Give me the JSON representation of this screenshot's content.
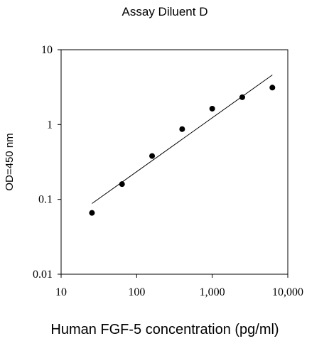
{
  "chart_data": {
    "type": "scatter",
    "title": "Assay Diluent  D",
    "xlabel": "Human FGF-5 concentration (pg/ml)",
    "ylabel": "OD=450 nm",
    "xscale": "log",
    "yscale": "log",
    "xlim": [
      10,
      10000
    ],
    "ylim": [
      0.01,
      10
    ],
    "x_ticks": [
      10,
      100,
      1000,
      10000
    ],
    "x_tick_labels": [
      "10",
      "100",
      "1,000",
      "10,000"
    ],
    "y_ticks": [
      0.01,
      0.1,
      1,
      10
    ],
    "y_tick_labels": [
      "0.01",
      "0.1",
      "1",
      "10"
    ],
    "grid": false,
    "series": [
      {
        "x": [
          25.6,
          64,
          160,
          400,
          1000,
          2500,
          6250
        ],
        "y": [
          0.066,
          0.16,
          0.38,
          0.87,
          1.63,
          2.32,
          3.12
        ]
      }
    ],
    "fit_line": {
      "x": [
        25.6,
        6250
      ],
      "y": [
        0.088,
        4.6
      ]
    },
    "colors": {
      "points": "#000000",
      "line": "#000000",
      "axes": "#000000"
    }
  }
}
